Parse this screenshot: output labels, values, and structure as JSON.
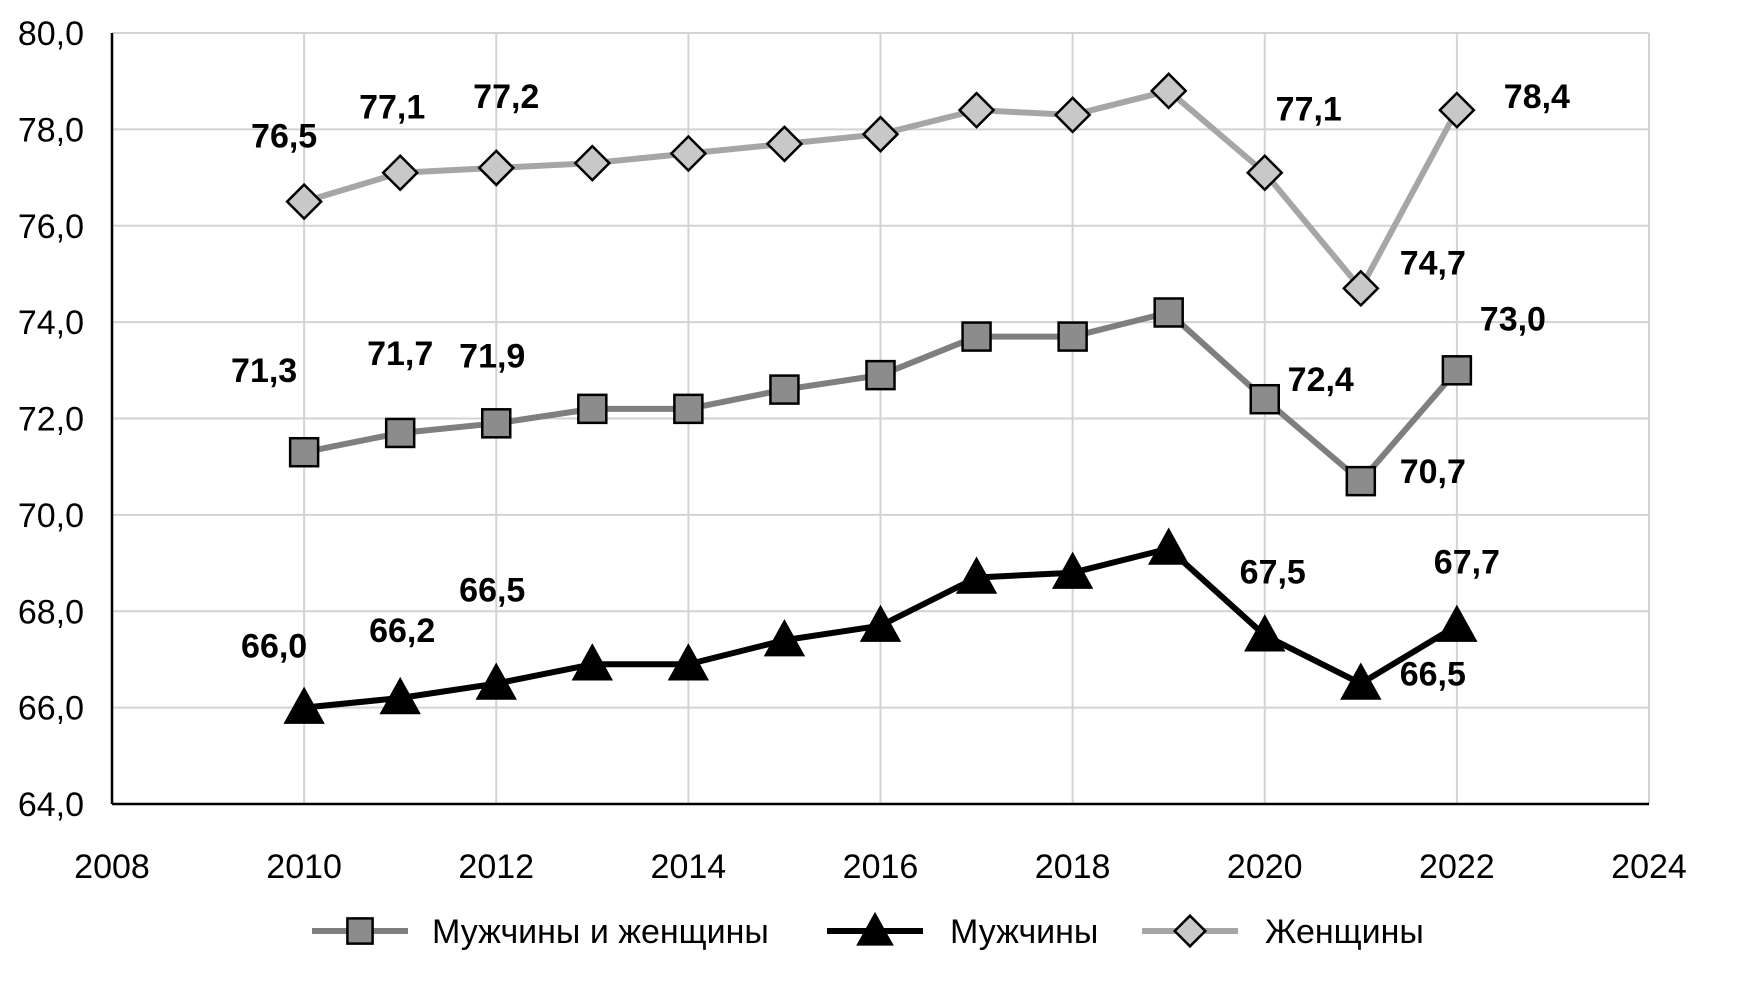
{
  "chart_data": {
    "type": "line",
    "title": "",
    "xlabel": "",
    "ylabel": "",
    "xlim": [
      2008,
      2024
    ],
    "ylim": [
      64,
      80
    ],
    "x_ticks": [
      "2008",
      "2010",
      "2012",
      "2014",
      "2016",
      "2018",
      "2020",
      "2022",
      "2024"
    ],
    "y_ticks": [
      "64,0",
      "66,0",
      "68,0",
      "70,0",
      "72,0",
      "74,0",
      "76,0",
      "78,0",
      "80,0"
    ],
    "grid": true,
    "legend_position": "bottom",
    "x": [
      2010,
      2011,
      2012,
      2013,
      2014,
      2015,
      2016,
      2017,
      2018,
      2019,
      2020,
      2021,
      2022
    ],
    "series": [
      {
        "name": "Мужчины и женщины",
        "marker": "square",
        "color": "#7f7f7f",
        "values": [
          71.3,
          71.7,
          71.9,
          72.2,
          72.2,
          72.6,
          72.9,
          73.7,
          73.7,
          74.2,
          72.4,
          70.7,
          73.0
        ],
        "labels": [
          "71,3",
          "71,7",
          "71,9",
          "",
          "",
          "",
          "",
          "",
          "",
          "",
          "72,4",
          "70,7",
          "73,0"
        ]
      },
      {
        "name": "Мужчины",
        "marker": "triangle",
        "color": "#000000",
        "values": [
          66.0,
          66.2,
          66.5,
          66.9,
          66.9,
          67.4,
          67.7,
          68.7,
          68.8,
          69.3,
          67.5,
          66.5,
          67.7
        ],
        "labels": [
          "66,0",
          "66,2",
          "66,5",
          "",
          "",
          "",
          "",
          "",
          "",
          "",
          "67,5",
          "66,5",
          "67,7"
        ]
      },
      {
        "name": "Женщины",
        "marker": "diamond",
        "color": "#a6a6a6",
        "values": [
          76.5,
          77.1,
          77.2,
          77.3,
          77.5,
          77.7,
          77.9,
          78.4,
          78.3,
          78.8,
          77.1,
          74.7,
          78.4
        ],
        "labels": [
          "76,5",
          "77,1",
          "77,2",
          "",
          "",
          "",
          "",
          "",
          "",
          "",
          "77,1",
          "74,7",
          "78,4"
        ]
      }
    ]
  }
}
